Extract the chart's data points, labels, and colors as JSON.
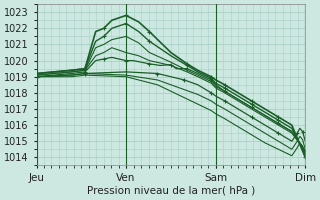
{
  "bg_color": "#cce8e0",
  "grid_color": "#aad0c8",
  "line_color": "#1a5e28",
  "xlabel": "Pression niveau de la mer( hPa )",
  "ylim": [
    1013.5,
    1023.5
  ],
  "yticks": [
    1014,
    1015,
    1016,
    1017,
    1018,
    1019,
    1020,
    1021,
    1022,
    1023
  ],
  "xtick_labels": [
    "Jeu",
    "Ven",
    "Sam",
    "Dim"
  ],
  "xtick_positions": [
    0,
    0.333,
    0.667,
    1.0
  ],
  "series": [
    {
      "points": [
        [
          0,
          1019.2
        ],
        [
          0.13,
          1019.4
        ],
        [
          0.18,
          1019.5
        ],
        [
          0.22,
          1021.8
        ],
        [
          0.25,
          1022.0
        ],
        [
          0.28,
          1022.5
        ],
        [
          0.333,
          1022.8
        ],
        [
          0.38,
          1022.4
        ],
        [
          0.42,
          1021.8
        ],
        [
          0.5,
          1020.5
        ],
        [
          0.56,
          1019.8
        ],
        [
          0.6,
          1019.4
        ],
        [
          0.65,
          1019.0
        ],
        [
          0.667,
          1018.8
        ],
        [
          0.7,
          1018.5
        ],
        [
          0.75,
          1018.0
        ],
        [
          0.8,
          1017.5
        ],
        [
          0.85,
          1017.0
        ],
        [
          0.9,
          1016.5
        ],
        [
          0.95,
          1016.0
        ],
        [
          1.0,
          1014.0
        ]
      ],
      "marker": true,
      "lw": 1.2
    },
    {
      "points": [
        [
          0,
          1019.2
        ],
        [
          0.13,
          1019.4
        ],
        [
          0.18,
          1019.5
        ],
        [
          0.22,
          1021.2
        ],
        [
          0.25,
          1021.5
        ],
        [
          0.28,
          1022.0
        ],
        [
          0.333,
          1022.3
        ],
        [
          0.38,
          1021.8
        ],
        [
          0.42,
          1021.2
        ],
        [
          0.5,
          1020.3
        ],
        [
          0.56,
          1019.7
        ],
        [
          0.6,
          1019.3
        ],
        [
          0.65,
          1018.9
        ],
        [
          0.667,
          1018.6
        ],
        [
          0.7,
          1018.3
        ],
        [
          0.75,
          1017.8
        ],
        [
          0.8,
          1017.3
        ],
        [
          0.85,
          1016.8
        ],
        [
          0.9,
          1016.3
        ],
        [
          0.95,
          1015.8
        ],
        [
          1.0,
          1014.2
        ]
      ],
      "marker": true,
      "lw": 1.0
    },
    {
      "points": [
        [
          0,
          1019.1
        ],
        [
          0.13,
          1019.3
        ],
        [
          0.18,
          1019.4
        ],
        [
          0.22,
          1020.8
        ],
        [
          0.25,
          1021.0
        ],
        [
          0.28,
          1021.3
        ],
        [
          0.333,
          1021.5
        ],
        [
          0.38,
          1021.1
        ],
        [
          0.42,
          1020.5
        ],
        [
          0.5,
          1019.9
        ],
        [
          0.56,
          1019.4
        ],
        [
          0.6,
          1019.1
        ],
        [
          0.65,
          1018.7
        ],
        [
          0.667,
          1018.4
        ],
        [
          0.7,
          1018.1
        ],
        [
          0.75,
          1017.6
        ],
        [
          0.8,
          1017.1
        ],
        [
          0.85,
          1016.6
        ],
        [
          0.9,
          1016.1
        ],
        [
          0.95,
          1015.6
        ],
        [
          1.0,
          1014.3
        ]
      ],
      "marker": false,
      "lw": 0.8
    },
    {
      "points": [
        [
          0,
          1019.1
        ],
        [
          0.13,
          1019.3
        ],
        [
          0.18,
          1019.4
        ],
        [
          0.22,
          1020.3
        ],
        [
          0.25,
          1020.5
        ],
        [
          0.28,
          1020.8
        ],
        [
          0.333,
          1020.5
        ],
        [
          0.38,
          1020.3
        ],
        [
          0.42,
          1020.0
        ],
        [
          0.5,
          1019.7
        ],
        [
          0.56,
          1019.3
        ],
        [
          0.6,
          1019.0
        ],
        [
          0.65,
          1018.6
        ],
        [
          0.667,
          1018.3
        ],
        [
          0.7,
          1018.0
        ],
        [
          0.75,
          1017.5
        ],
        [
          0.8,
          1017.0
        ],
        [
          0.85,
          1016.5
        ],
        [
          0.9,
          1016.0
        ],
        [
          0.95,
          1015.5
        ],
        [
          1.0,
          1014.4
        ]
      ],
      "marker": false,
      "lw": 0.8
    },
    {
      "points": [
        [
          0,
          1019.0
        ],
        [
          0.13,
          1019.2
        ],
        [
          0.18,
          1019.3
        ],
        [
          0.22,
          1020.0
        ],
        [
          0.25,
          1020.1
        ],
        [
          0.28,
          1020.2
        ],
        [
          0.333,
          1020.0
        ],
        [
          0.36,
          1020.0
        ],
        [
          0.42,
          1019.8
        ],
        [
          0.46,
          1019.7
        ],
        [
          0.5,
          1019.75
        ],
        [
          0.52,
          1019.5
        ],
        [
          0.56,
          1019.5
        ],
        [
          0.6,
          1019.2
        ],
        [
          0.65,
          1018.8
        ],
        [
          0.667,
          1018.5
        ],
        [
          0.7,
          1018.1
        ],
        [
          0.75,
          1017.6
        ],
        [
          0.8,
          1017.1
        ],
        [
          0.85,
          1016.6
        ],
        [
          0.9,
          1016.1
        ],
        [
          0.95,
          1015.6
        ],
        [
          1.0,
          1014.4
        ]
      ],
      "marker": true,
      "lw": 0.9
    },
    {
      "points": [
        [
          0,
          1019.0
        ],
        [
          0.13,
          1019.1
        ],
        [
          0.18,
          1019.2
        ],
        [
          0.333,
          1019.3
        ],
        [
          0.45,
          1019.2
        ],
        [
          0.5,
          1019.0
        ],
        [
          0.55,
          1018.8
        ],
        [
          0.6,
          1018.5
        ],
        [
          0.65,
          1018.0
        ],
        [
          0.667,
          1017.8
        ],
        [
          0.7,
          1017.5
        ],
        [
          0.75,
          1017.0
        ],
        [
          0.8,
          1016.5
        ],
        [
          0.85,
          1016.0
        ],
        [
          0.9,
          1015.5
        ],
        [
          0.95,
          1015.0
        ],
        [
          0.97,
          1015.5
        ],
        [
          0.98,
          1015.8
        ],
        [
          0.99,
          1015.6
        ],
        [
          1.0,
          1015.0
        ]
      ],
      "marker": true,
      "lw": 0.9
    },
    {
      "points": [
        [
          0,
          1019.0
        ],
        [
          0.13,
          1019.1
        ],
        [
          0.18,
          1019.2
        ],
        [
          0.333,
          1019.1
        ],
        [
          0.45,
          1018.8
        ],
        [
          0.5,
          1018.5
        ],
        [
          0.55,
          1018.2
        ],
        [
          0.6,
          1017.9
        ],
        [
          0.65,
          1017.5
        ],
        [
          0.667,
          1017.3
        ],
        [
          0.7,
          1017.0
        ],
        [
          0.75,
          1016.5
        ],
        [
          0.8,
          1016.0
        ],
        [
          0.85,
          1015.5
        ],
        [
          0.9,
          1015.0
        ],
        [
          0.95,
          1014.5
        ],
        [
          0.97,
          1015.0
        ],
        [
          0.98,
          1015.3
        ],
        [
          0.99,
          1015.1
        ],
        [
          1.0,
          1014.5
        ]
      ],
      "marker": false,
      "lw": 0.8
    },
    {
      "points": [
        [
          0,
          1019.0
        ],
        [
          0.13,
          1019.0
        ],
        [
          0.18,
          1019.1
        ],
        [
          0.333,
          1019.0
        ],
        [
          0.45,
          1018.5
        ],
        [
          0.5,
          1018.1
        ],
        [
          0.55,
          1017.7
        ],
        [
          0.6,
          1017.3
        ],
        [
          0.65,
          1016.9
        ],
        [
          0.667,
          1016.7
        ],
        [
          0.7,
          1016.4
        ],
        [
          0.75,
          1015.9
        ],
        [
          0.8,
          1015.4
        ],
        [
          0.85,
          1014.9
        ],
        [
          0.9,
          1014.5
        ],
        [
          0.95,
          1014.1
        ],
        [
          0.97,
          1014.6
        ],
        [
          0.98,
          1014.9
        ],
        [
          0.99,
          1014.7
        ],
        [
          1.0,
          1014.1
        ]
      ],
      "marker": false,
      "lw": 0.8
    }
  ]
}
